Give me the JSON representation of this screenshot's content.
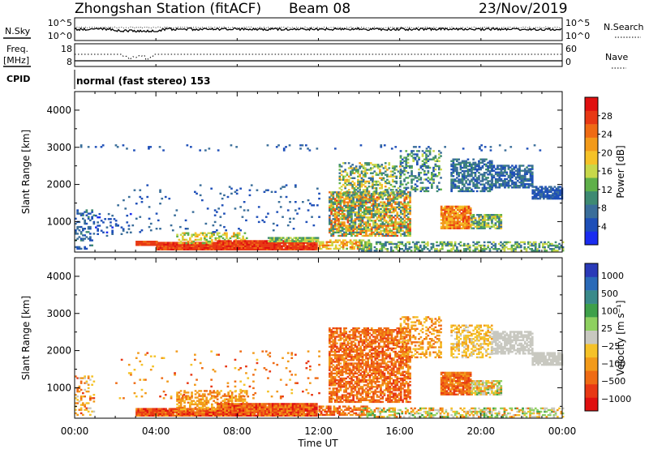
{
  "header": {
    "title": "Zhongshan Station (fitACF)",
    "beam": "Beam 08",
    "date": "23/Nov/2019"
  },
  "status_panels": {
    "nsky": {
      "label": "N.Sky",
      "ticks": [
        "10^5",
        "10^0"
      ],
      "right_label": "N.Search",
      "right_ticks": [
        "10^5",
        "10^0"
      ]
    },
    "freq": {
      "label_line1": "Freq.",
      "label_line2": "[MHz]",
      "ticks": [
        "18",
        "8"
      ],
      "right_label": "Nave",
      "right_ticks": [
        "60",
        "0"
      ]
    },
    "cpid": {
      "label": "CPID",
      "text": "normal (fast stereo) 153"
    }
  },
  "colors": {
    "power": [
      "#1a2cf0",
      "#1e4fb8",
      "#3a6e9a",
      "#3e8a72",
      "#5fb04a",
      "#c8d84a",
      "#f5c228",
      "#f29a1a",
      "#ef6b14",
      "#e83814",
      "#e01010"
    ],
    "velocity": [
      "#2a3ab8",
      "#2a6ab8",
      "#3a8a8a",
      "#3ea04a",
      "#8ed060",
      "#c8c8c0",
      "#f5c228",
      "#f29a1a",
      "#ef6b14",
      "#e83814",
      "#e01010"
    ]
  },
  "chart_data": [
    {
      "type": "heatmap",
      "name": "power",
      "ylabel": "Slant Range [km]",
      "ylim": [
        180,
        4500
      ],
      "yticks": [
        1000,
        2000,
        3000,
        4000
      ],
      "xlim_hours": [
        0,
        24
      ],
      "colorbar": {
        "label": "Power [dB]",
        "range": [
          0,
          32
        ],
        "ticks": [
          4,
          8,
          12,
          16,
          20,
          24,
          28
        ]
      },
      "patches": [
        {
          "t": [
            0.0,
            0.9
          ],
          "r": [
            250,
            1300
          ],
          "density": 0.35,
          "level": [
            3,
            10
          ]
        },
        {
          "t": [
            1.0,
            2.8
          ],
          "r": [
            600,
            1200
          ],
          "density": 0.15,
          "level": [
            2,
            8
          ]
        },
        {
          "t": [
            3.0,
            4.0
          ],
          "r": [
            350,
            450
          ],
          "density": 0.95,
          "level": [
            26,
            30
          ]
        },
        {
          "t": [
            4.0,
            7.0
          ],
          "r": [
            230,
            420
          ],
          "density": 0.98,
          "level": [
            26,
            31
          ]
        },
        {
          "t": [
            5.0,
            8.5
          ],
          "r": [
            400,
            700
          ],
          "density": 0.45,
          "level": [
            12,
            22
          ]
        },
        {
          "t": [
            7.0,
            11.9
          ],
          "r": [
            230,
            470
          ],
          "density": 0.98,
          "level": [
            26,
            31
          ]
        },
        {
          "t": [
            9.5,
            12.0
          ],
          "r": [
            450,
            560
          ],
          "density": 0.9,
          "level": [
            10,
            18
          ]
        },
        {
          "t": [
            2.0,
            12.0
          ],
          "r": [
            700,
            2000
          ],
          "density": 0.04,
          "level": [
            3,
            9
          ]
        },
        {
          "t": [
            12.0,
            14.5
          ],
          "r": [
            250,
            500
          ],
          "density": 0.7,
          "level": [
            14,
            26
          ]
        },
        {
          "t": [
            12.5,
            16.5
          ],
          "r": [
            600,
            1800
          ],
          "density": 0.75,
          "level": [
            6,
            28
          ]
        },
        {
          "t": [
            13.0,
            16.0
          ],
          "r": [
            1700,
            2600
          ],
          "density": 0.45,
          "level": [
            6,
            22
          ]
        },
        {
          "t": [
            16.0,
            18.0
          ],
          "r": [
            1800,
            2900
          ],
          "density": 0.4,
          "level": [
            4,
            16
          ]
        },
        {
          "t": [
            18.0,
            19.5
          ],
          "r": [
            800,
            1400
          ],
          "density": 0.9,
          "level": [
            18,
            30
          ]
        },
        {
          "t": [
            19.5,
            21.0
          ],
          "r": [
            800,
            1200
          ],
          "density": 0.8,
          "level": [
            6,
            20
          ]
        },
        {
          "t": [
            18.5,
            20.5
          ],
          "r": [
            1800,
            2700
          ],
          "density": 0.6,
          "level": [
            4,
            12
          ]
        },
        {
          "t": [
            20.5,
            22.5
          ],
          "r": [
            1900,
            2500
          ],
          "density": 0.7,
          "level": [
            4,
            10
          ]
        },
        {
          "t": [
            22.5,
            24.0
          ],
          "r": [
            1600,
            1950
          ],
          "density": 0.85,
          "level": [
            3,
            8
          ]
        },
        {
          "t": [
            14.0,
            24.0
          ],
          "r": [
            200,
            450
          ],
          "density": 0.55,
          "level": [
            6,
            18
          ]
        },
        {
          "t": [
            0.0,
            24.0
          ],
          "r": [
            2900,
            3050
          ],
          "density": 0.05,
          "level": [
            3,
            8
          ]
        }
      ]
    },
    {
      "type": "heatmap",
      "name": "velocity",
      "ylabel": "Slant Range [km]",
      "ylim": [
        180,
        4500
      ],
      "yticks": [
        1000,
        2000,
        3000,
        4000
      ],
      "xlim_hours": [
        0,
        24
      ],
      "xticks": [
        "00:00",
        "04:00",
        "08:00",
        "12:00",
        "16:00",
        "20:00",
        "00:00"
      ],
      "xlabel": "Time UT",
      "colorbar": {
        "label": "Velocity [m s⁻¹]",
        "ticks": [
          "1000",
          "500",
          "100",
          "25",
          "−25",
          "−100",
          "−500",
          "−1000"
        ]
      },
      "patches": [
        {
          "t": [
            0.0,
            0.9
          ],
          "r": [
            250,
            1300
          ],
          "density": 0.3,
          "level": [
            5,
            9
          ]
        },
        {
          "t": [
            3.0,
            7.0
          ],
          "r": [
            230,
            450
          ],
          "density": 0.98,
          "level": [
            7,
            10
          ]
        },
        {
          "t": [
            5.0,
            8.5
          ],
          "r": [
            400,
            900
          ],
          "density": 0.5,
          "level": [
            6,
            8
          ]
        },
        {
          "t": [
            7.0,
            11.9
          ],
          "r": [
            230,
            560
          ],
          "density": 0.98,
          "level": [
            7,
            10
          ]
        },
        {
          "t": [
            2.0,
            12.0
          ],
          "r": [
            700,
            2000
          ],
          "density": 0.04,
          "level": [
            6,
            9
          ]
        },
        {
          "t": [
            12.0,
            14.5
          ],
          "r": [
            250,
            500
          ],
          "density": 0.7,
          "level": [
            7,
            9
          ]
        },
        {
          "t": [
            12.5,
            16.5
          ],
          "r": [
            600,
            2600
          ],
          "density": 0.7,
          "level": [
            7,
            9
          ]
        },
        {
          "t": [
            16.0,
            18.0
          ],
          "r": [
            1800,
            2900
          ],
          "density": 0.35,
          "level": [
            6,
            8
          ]
        },
        {
          "t": [
            18.0,
            19.5
          ],
          "r": [
            800,
            1400
          ],
          "density": 0.85,
          "level": [
            7,
            9
          ]
        },
        {
          "t": [
            19.5,
            21.0
          ],
          "r": [
            800,
            1200
          ],
          "density": 0.75,
          "level": [
            3,
            8
          ]
        },
        {
          "t": [
            18.5,
            20.5
          ],
          "r": [
            1800,
            2700
          ],
          "density": 0.5,
          "level": [
            5,
            7
          ]
        },
        {
          "t": [
            20.5,
            22.5
          ],
          "r": [
            1900,
            2500
          ],
          "density": 0.7,
          "level": [
            5,
            5
          ]
        },
        {
          "t": [
            22.5,
            24.0
          ],
          "r": [
            1600,
            1950
          ],
          "density": 0.85,
          "level": [
            5,
            5
          ]
        },
        {
          "t": [
            14.0,
            24.0
          ],
          "r": [
            200,
            450
          ],
          "density": 0.5,
          "level": [
            3,
            8
          ]
        }
      ]
    }
  ]
}
